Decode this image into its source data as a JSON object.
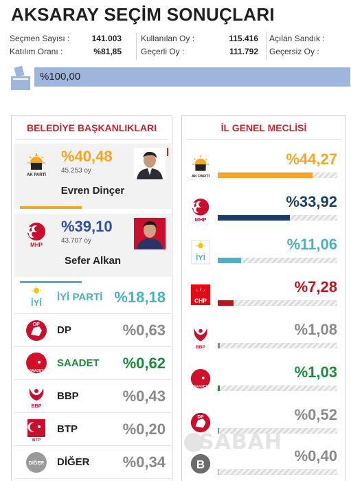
{
  "title": "AKSARAY SEÇİM SONUÇLARI",
  "stats": {
    "secmen_label": "Seçmen Sayısı :",
    "secmen_value": "141.003",
    "katilim_label": "Katılım Oranı :",
    "katilim_value": "%81,85",
    "kullanilan_label": "Kullanılan Oy :",
    "kullanilan_value": "115.416",
    "gecerli_label": "Geçerli Oy :",
    "gecerli_value": "111.792",
    "acilan_label": "Açılan Sandık :",
    "acilan_value": "",
    "gecersiz_label": "Geçersiz Oy :",
    "gecersiz_value": ""
  },
  "progress": {
    "text": "%100,00",
    "fraction": 1.0
  },
  "mayor": {
    "header": "BELEDİYE BAŞKANLIKLARI",
    "candidates": [
      {
        "party": "AK PARTİ",
        "pct": "%40,48",
        "votes": "45.253 oy",
        "name": "Evren Dinçer",
        "color": "#f5a623"
      },
      {
        "party": "MHP",
        "pct": "%39,10",
        "votes": "43.707 oy",
        "name": "Sefer Alkan",
        "color": "#2e4fa8"
      }
    ],
    "parties": [
      {
        "name": "İYİ PARTİ",
        "pct": "%18,18",
        "name_color": "#4bb1bf",
        "pct_color": "#4bb1bf"
      },
      {
        "name": "DP",
        "pct": "%0,63",
        "name_color": "#222222",
        "pct_color": "#8a8a8a"
      },
      {
        "name": "SAADET",
        "pct": "%0,62",
        "name_color": "#1e8a3c",
        "pct_color": "#1e8a3c"
      },
      {
        "name": "BBP",
        "pct": "%0,43",
        "name_color": "#222222",
        "pct_color": "#8a8a8a"
      },
      {
        "name": "BTP",
        "pct": "%0,20",
        "name_color": "#222222",
        "pct_color": "#8a8a8a"
      },
      {
        "name": "DİĞER",
        "pct": "%0,34",
        "name_color": "#222222",
        "pct_color": "#8a8a8a"
      }
    ]
  },
  "council": {
    "header": "İL GENEL MECLİSİ",
    "rows": [
      {
        "party": "AK PARTİ",
        "pct": "%44,27",
        "value": 44.27,
        "color": "#f5a623"
      },
      {
        "party": "MHP",
        "pct": "%33,92",
        "value": 33.92,
        "color": "#1b3f66"
      },
      {
        "party": "İYİ",
        "pct": "%11,06",
        "value": 11.06,
        "color": "#4fb1bf"
      },
      {
        "party": "CHP",
        "pct": "%7,28",
        "value": 7.28,
        "color": "#b8161c"
      },
      {
        "party": "BBP",
        "pct": "%1,08",
        "value": 1.08,
        "color": "#8a8a8a"
      },
      {
        "party": "SAADET",
        "pct": "%1,03",
        "value": 1.03,
        "color": "#1e8a3c"
      },
      {
        "party": "DP",
        "pct": "%0,52",
        "value": 0.52,
        "color": "#8a8a8a"
      },
      {
        "party": "B",
        "pct": "%0,40",
        "value": 0.4,
        "color": "#8a8a8a"
      }
    ],
    "pct_colors": [
      "#f5a623",
      "#1b3f66",
      "#4fb1bf",
      "#b8161c",
      "#8a8a8a",
      "#1e8a3c",
      "#8a8a8a",
      "#8a8a8a"
    ]
  },
  "icons": {
    "akparti": "akparti-logo-icon",
    "mhp": "mhp-logo-icon",
    "iyi": "iyi-logo-icon",
    "dp": "dp-logo-icon",
    "saadet": "saadet-logo-icon",
    "bbp": "bbp-logo-icon",
    "btp": "btp-logo-icon",
    "diger": "diger-logo-icon",
    "chp": "chp-logo-icon"
  },
  "watermark": "SABAH"
}
